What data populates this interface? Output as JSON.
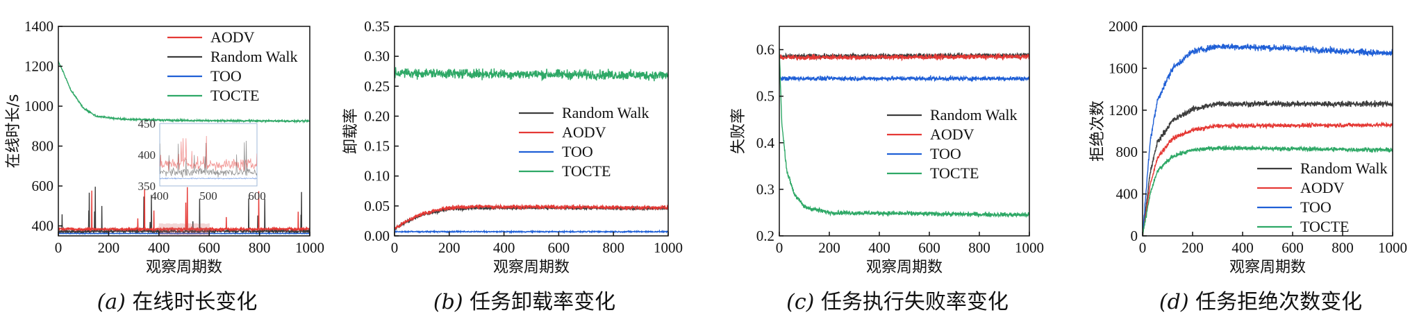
{
  "colors": {
    "Random Walk": "#3c3c3c",
    "AODV": "#e53935",
    "TOO": "#1f5fd6",
    "TOCTE": "#2ea866"
  },
  "chart_data": [
    {
      "id": "a",
      "type": "line",
      "caption_letter": "(a)",
      "caption_text": "在线时长变化",
      "xlabel": "观察周期数",
      "ylabel": "在线时长/s",
      "xlim": [
        0,
        1000
      ],
      "ylim": [
        350,
        1400
      ],
      "xticks": [
        0,
        200,
        400,
        600,
        800,
        1000
      ],
      "yticks": [
        400,
        600,
        800,
        1000,
        1200,
        1400
      ],
      "legend": [
        "AODV",
        "Random Walk",
        "TOO",
        "TOCTE"
      ],
      "legend_position": "top-right",
      "series": [
        {
          "name": "Random Walk",
          "values": [
            [
              0,
              370
            ],
            [
              100,
              372
            ],
            [
              300,
              375
            ],
            [
              500,
              372
            ],
            [
              700,
              374
            ],
            [
              1000,
              373
            ]
          ],
          "noise": 12,
          "spikes": true
        },
        {
          "name": "AODV",
          "values": [
            [
              0,
              385
            ],
            [
              100,
              383
            ],
            [
              500,
              384
            ],
            [
              1000,
              384
            ]
          ],
          "noise": 10,
          "spikes": true
        },
        {
          "name": "TOO",
          "values": [
            [
              0,
              362
            ],
            [
              1000,
              362
            ]
          ],
          "noise": 2
        },
        {
          "name": "TOCTE",
          "values": [
            [
              0,
              1225
            ],
            [
              20,
              1170
            ],
            [
              50,
              1080
            ],
            [
              100,
              990
            ],
            [
              150,
              950
            ],
            [
              250,
              935
            ],
            [
              500,
              928
            ],
            [
              1000,
              925
            ]
          ],
          "noise": 6
        }
      ],
      "inset": {
        "xlim": [
          400,
          600
        ],
        "ylim": [
          350,
          450
        ],
        "xticks": [
          400,
          500,
          600
        ],
        "yticks": [
          350,
          400,
          450
        ]
      }
    },
    {
      "id": "b",
      "type": "line",
      "caption_letter": "(b)",
      "caption_text": "任务卸载率变化",
      "xlabel": "观察周期数",
      "ylabel": "卸载率",
      "xlim": [
        0,
        1000
      ],
      "ylim": [
        0,
        0.35
      ],
      "xticks": [
        0,
        200,
        400,
        600,
        800,
        1000
      ],
      "yticks": [
        0.0,
        0.05,
        0.1,
        0.15,
        0.2,
        0.25,
        0.3,
        0.35
      ],
      "ytick_format": 2,
      "legend": [
        "Random Walk",
        "AODV",
        "TOO",
        "TOCTE"
      ],
      "legend_position": "center-right",
      "series": [
        {
          "name": "Random Walk",
          "values": [
            [
              0,
              0.012
            ],
            [
              50,
              0.025
            ],
            [
              100,
              0.035
            ],
            [
              200,
              0.045
            ],
            [
              300,
              0.047
            ],
            [
              1000,
              0.046
            ]
          ],
          "noise": 0.004
        },
        {
          "name": "AODV",
          "values": [
            [
              0,
              0.012
            ],
            [
              50,
              0.026
            ],
            [
              100,
              0.037
            ],
            [
              200,
              0.047
            ],
            [
              300,
              0.049
            ],
            [
              1000,
              0.047
            ]
          ],
          "noise": 0.005
        },
        {
          "name": "TOO",
          "values": [
            [
              0,
              0.007
            ],
            [
              1000,
              0.007
            ]
          ],
          "noise": 0.0015
        },
        {
          "name": "TOCTE",
          "values": [
            [
              0,
              0.272
            ],
            [
              1000,
              0.268
            ]
          ],
          "noise": 0.012
        }
      ]
    },
    {
      "id": "c",
      "type": "line",
      "caption_letter": "(c)",
      "caption_text": "任务执行失败率变化",
      "xlabel": "观察周期数",
      "ylabel": "失败率",
      "xlim": [
        0,
        1000
      ],
      "ylim": [
        0.2,
        0.65
      ],
      "xticks": [
        0,
        200,
        400,
        600,
        800,
        1000
      ],
      "yticks": [
        0.2,
        0.3,
        0.4,
        0.5,
        0.6
      ],
      "ytick_format": 1,
      "legend": [
        "Random Walk",
        "AODV",
        "TOO",
        "TOCTE"
      ],
      "legend_position": "center-right",
      "series": [
        {
          "name": "Random Walk",
          "values": [
            [
              0,
              0.585
            ],
            [
              1000,
              0.588
            ]
          ],
          "noise": 0.008
        },
        {
          "name": "AODV",
          "values": [
            [
              0,
              0.583
            ],
            [
              1000,
              0.585
            ]
          ],
          "noise": 0.008
        },
        {
          "name": "TOO",
          "values": [
            [
              0,
              0.538
            ],
            [
              1000,
              0.538
            ]
          ],
          "noise": 0.007
        },
        {
          "name": "TOCTE",
          "values": [
            [
              0,
              0.6
            ],
            [
              10,
              0.44
            ],
            [
              30,
              0.34
            ],
            [
              60,
              0.29
            ],
            [
              100,
              0.262
            ],
            [
              200,
              0.25
            ],
            [
              1000,
              0.245
            ]
          ],
          "noise": 0.007
        }
      ]
    },
    {
      "id": "d",
      "type": "line",
      "caption_letter": "(d)",
      "caption_text": "任务拒绝次数变化",
      "xlabel": "观察周期数",
      "ylabel": "拒绝次数",
      "xlim": [
        0,
        1000
      ],
      "ylim": [
        0,
        2000
      ],
      "xticks": [
        0,
        200,
        400,
        600,
        800,
        1000
      ],
      "yticks": [
        0,
        400,
        800,
        1200,
        1600,
        2000
      ],
      "legend": [
        "Random Walk",
        "AODV",
        "TOO",
        "TOCTE"
      ],
      "legend_position": "bottom-right",
      "series": [
        {
          "name": "Random Walk",
          "values": [
            [
              0,
              0
            ],
            [
              30,
              600
            ],
            [
              60,
              900
            ],
            [
              120,
              1100
            ],
            [
              200,
              1210
            ],
            [
              300,
              1260
            ],
            [
              1000,
              1260
            ]
          ],
          "noise": 40
        },
        {
          "name": "AODV",
          "values": [
            [
              0,
              0
            ],
            [
              30,
              480
            ],
            [
              60,
              750
            ],
            [
              120,
              930
            ],
            [
              200,
              1010
            ],
            [
              300,
              1050
            ],
            [
              1000,
              1060
            ]
          ],
          "noise": 30
        },
        {
          "name": "TOO",
          "values": [
            [
              0,
              0
            ],
            [
              30,
              900
            ],
            [
              60,
              1300
            ],
            [
              120,
              1600
            ],
            [
              200,
              1760
            ],
            [
              300,
              1810
            ],
            [
              600,
              1790
            ],
            [
              1000,
              1740
            ]
          ],
          "noise": 45
        },
        {
          "name": "TOCTE",
          "values": [
            [
              0,
              0
            ],
            [
              30,
              400
            ],
            [
              60,
              620
            ],
            [
              120,
              760
            ],
            [
              200,
              820
            ],
            [
              300,
              840
            ],
            [
              1000,
              820
            ]
          ],
          "noise": 30
        }
      ]
    }
  ]
}
